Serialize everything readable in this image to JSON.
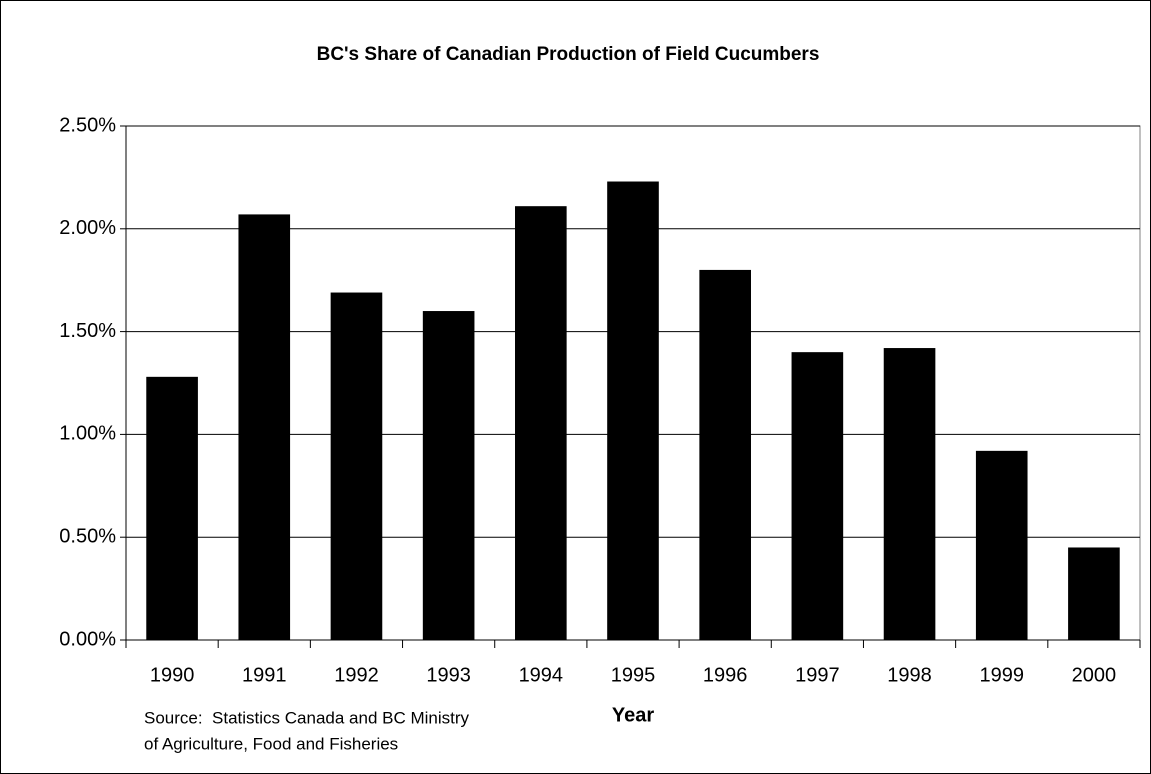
{
  "chart_data": {
    "type": "bar",
    "title": "BC's Share of Canadian Production of Field Cucumbers",
    "xlabel": "Year",
    "source": [
      "Source:  Statistics Canada and BC Ministry",
      "of Agriculture, Food and Fisheries"
    ],
    "categories": [
      "1990",
      "1991",
      "1992",
      "1993",
      "1994",
      "1995",
      "1996",
      "1997",
      "1998",
      "1999",
      "2000"
    ],
    "values": [
      1.28,
      2.07,
      1.69,
      1.6,
      2.11,
      2.23,
      1.8,
      1.4,
      1.42,
      0.92,
      0.45
    ],
    "color": "#000000",
    "ylim": [
      0,
      2.5
    ],
    "yticks": [
      {
        "value": 0,
        "label": "0.00%"
      },
      {
        "value": 0.5,
        "label": "0.50%"
      },
      {
        "value": 1,
        "label": "1.00%"
      },
      {
        "value": 1.5,
        "label": "1.50%"
      },
      {
        "value": 2,
        "label": "2.00%"
      },
      {
        "value": 2.5,
        "label": "2.50%"
      }
    ],
    "grid": true
  }
}
